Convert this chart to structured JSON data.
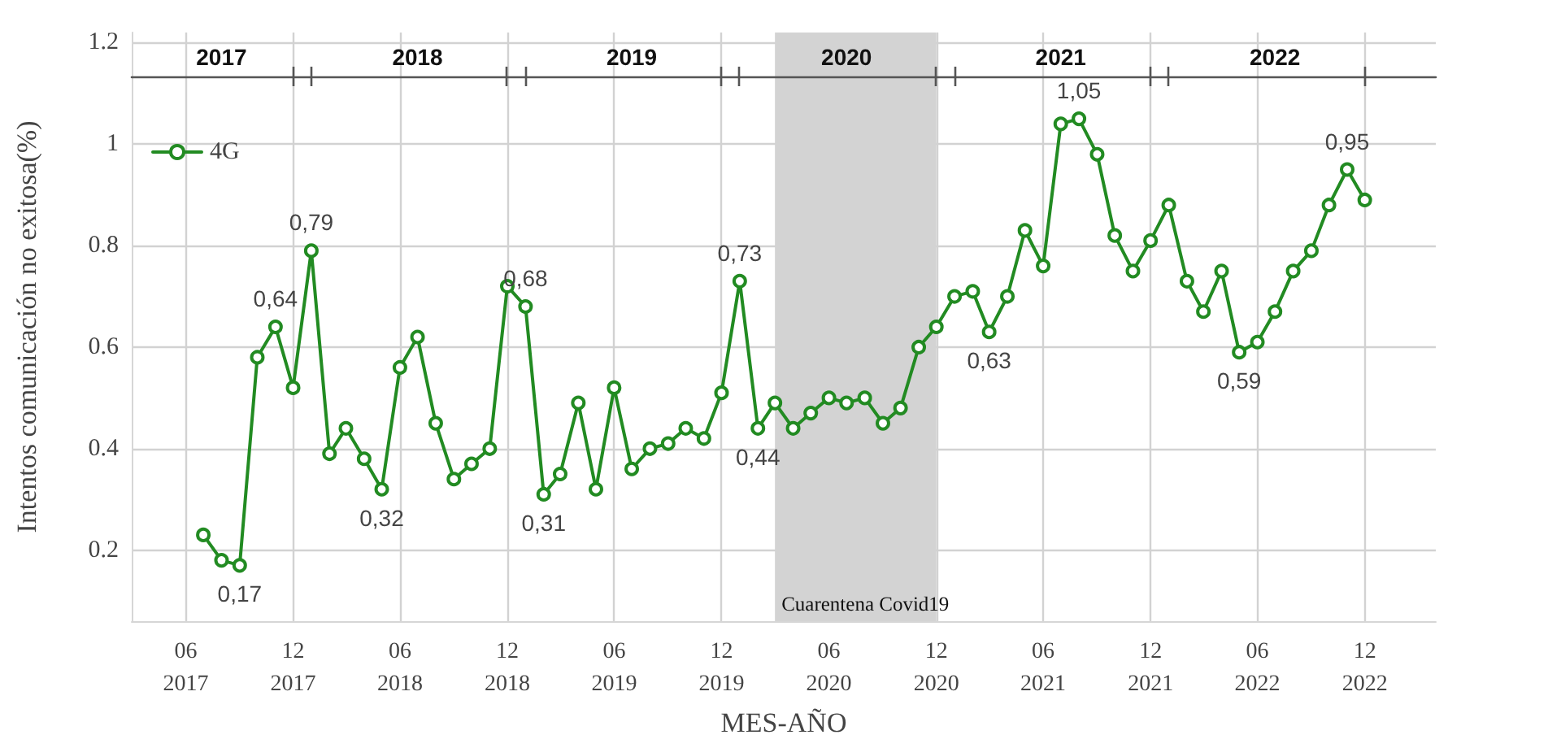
{
  "chart_data": {
    "type": "line",
    "xlabel": "MES-AÑO",
    "ylabel": "Intentos comunicación no exitosa(%)",
    "x": [
      "2017-07",
      "2017-08",
      "2017-09",
      "2017-10",
      "2017-11",
      "2017-12",
      "2018-01",
      "2018-02",
      "2018-03",
      "2018-04",
      "2018-05",
      "2018-06",
      "2018-07",
      "2018-08",
      "2018-09",
      "2018-10",
      "2018-11",
      "2018-12",
      "2019-01",
      "2019-02",
      "2019-03",
      "2019-04",
      "2019-05",
      "2019-06",
      "2019-07",
      "2019-08",
      "2019-09",
      "2019-10",
      "2019-11",
      "2019-12",
      "2020-01",
      "2020-02",
      "2020-03",
      "2020-04",
      "2020-05",
      "2020-06",
      "2020-07",
      "2020-08",
      "2020-09",
      "2020-10",
      "2020-11",
      "2020-12",
      "2021-01",
      "2021-02",
      "2021-03",
      "2021-04",
      "2021-05",
      "2021-06",
      "2021-07",
      "2021-08",
      "2021-09",
      "2021-10",
      "2021-11",
      "2021-12",
      "2022-01",
      "2022-02",
      "2022-03",
      "2022-04",
      "2022-05",
      "2022-06",
      "2022-07",
      "2022-08",
      "2022-09",
      "2022-10",
      "2022-11",
      "2022-12"
    ],
    "series": [
      {
        "name": "4G",
        "color": "#228b22",
        "values": [
          0.23,
          0.18,
          0.17,
          0.58,
          0.64,
          0.52,
          0.79,
          0.39,
          0.44,
          0.38,
          0.32,
          0.56,
          0.62,
          0.45,
          0.34,
          0.37,
          0.4,
          0.72,
          0.68,
          0.31,
          0.35,
          0.49,
          0.32,
          0.52,
          0.36,
          0.4,
          0.41,
          0.44,
          0.42,
          0.51,
          0.73,
          0.44,
          0.49,
          0.44,
          0.47,
          0.5,
          0.49,
          0.5,
          0.45,
          0.48,
          0.6,
          0.64,
          0.7,
          0.71,
          0.63,
          0.7,
          0.83,
          0.76,
          1.04,
          1.05,
          0.98,
          0.82,
          0.75,
          0.81,
          0.88,
          0.73,
          0.67,
          0.75,
          0.59,
          0.61,
          0.67,
          0.75,
          0.79,
          0.88,
          0.95,
          0.89
        ],
        "value_labels": [
          null,
          null,
          "0,17",
          null,
          "0,64",
          null,
          "0,79",
          null,
          null,
          null,
          "0,32",
          null,
          null,
          null,
          null,
          null,
          null,
          null,
          "0,68",
          "0,31",
          null,
          null,
          null,
          null,
          null,
          null,
          null,
          null,
          null,
          null,
          "0,73",
          "0,44",
          null,
          null,
          null,
          null,
          null,
          null,
          null,
          null,
          null,
          null,
          null,
          null,
          "0,63",
          null,
          null,
          null,
          null,
          "1,05",
          null,
          null,
          null,
          null,
          null,
          null,
          null,
          null,
          "0,59",
          null,
          null,
          null,
          null,
          null,
          "0,95",
          null
        ]
      }
    ],
    "xlim": [
      "2017-03",
      "2023-04"
    ],
    "xticks": [
      {
        "value": "2017-06",
        "label": "06\n2017"
      },
      {
        "value": "2017-12",
        "label": "12\n2017"
      },
      {
        "value": "2018-06",
        "label": "06\n2018"
      },
      {
        "value": "2018-12",
        "label": "12\n2018"
      },
      {
        "value": "2019-06",
        "label": "06\n2019"
      },
      {
        "value": "2019-12",
        "label": "12\n2019"
      },
      {
        "value": "2020-06",
        "label": "06\n2020"
      },
      {
        "value": "2020-12",
        "label": "12\n2020"
      },
      {
        "value": "2021-06",
        "label": "06\n2021"
      },
      {
        "value": "2021-12",
        "label": "12\n2021"
      },
      {
        "value": "2022-06",
        "label": "06\n2022"
      },
      {
        "value": "2022-12",
        "label": "12\n2022"
      }
    ],
    "x2lim": [
      "2017-03",
      "2023-04"
    ],
    "x2ticks": [
      {
        "value": "2017-08",
        "label": "2017"
      },
      {
        "value": "2018-07",
        "label": "2018"
      },
      {
        "value": "2019-07",
        "label": "2019"
      },
      {
        "value": "2020-07",
        "label": "2020"
      },
      {
        "value": "2021-07",
        "label": "2021"
      },
      {
        "value": "2022-07",
        "label": "2022"
      }
    ],
    "ylim": [
      0.06,
      1.22
    ],
    "yticks": [
      0.2,
      0.4,
      0.6,
      0.8,
      1,
      1.2
    ],
    "bands": [
      {
        "axis": "x",
        "from": "2020-03",
        "to": "2020-12",
        "label": "Cuarentena Covid19",
        "color": "#d3d3d3"
      }
    ],
    "grid": true,
    "legend": "top left",
    "marker": "circle",
    "line_style": "solid"
  }
}
